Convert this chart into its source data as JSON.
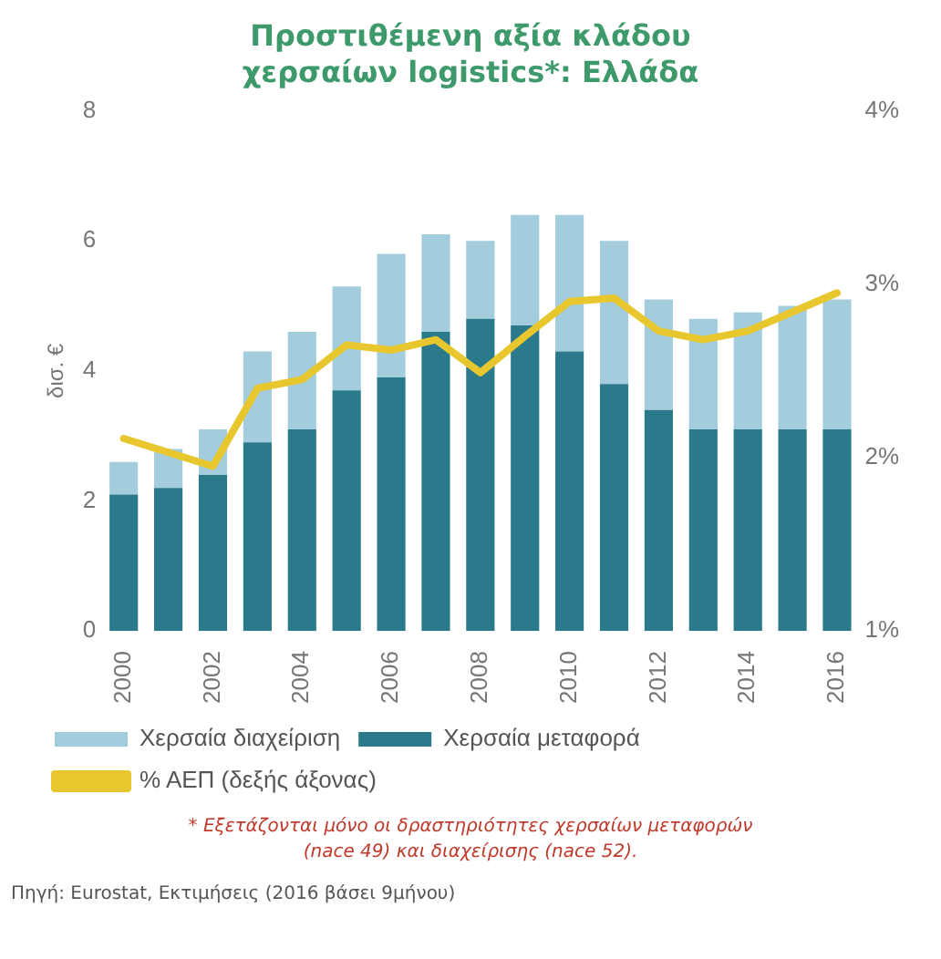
{
  "chart_data": {
    "type": "bar",
    "title": "Προστιθέμενη αξία κλάδου χερσαίων logistics*: Ελλάδα",
    "ylabel": "δισ. €",
    "categories": [
      "2000",
      null,
      "2002",
      null,
      "2004",
      null,
      "2006",
      null,
      "2008",
      null,
      "2010",
      null,
      "2012",
      null,
      "2014",
      null,
      "2016"
    ],
    "stacked": true,
    "series": [
      {
        "name": "Χερσαία μεταφορά",
        "color": "#2b7a8b",
        "values": [
          2.1,
          2.2,
          2.4,
          2.9,
          3.1,
          3.7,
          3.9,
          4.6,
          4.8,
          4.7,
          4.3,
          3.8,
          3.4,
          3.1,
          3.1,
          3.1,
          3.1
        ]
      },
      {
        "name": "Χερσαία διαχείριση",
        "color": "#a3cddc",
        "values": [
          0.5,
          0.6,
          0.7,
          1.4,
          1.5,
          1.6,
          1.9,
          1.5,
          1.2,
          1.7,
          2.1,
          2.2,
          1.7,
          1.7,
          1.8,
          1.9,
          2.0
        ]
      },
      {
        "name": "% ΑΕΠ (δεξής άξονας)",
        "type": "line",
        "axis": "y2",
        "color": "#e8c72e",
        "values": [
          2.11,
          2.03,
          1.95,
          2.4,
          2.45,
          2.65,
          2.62,
          2.68,
          2.49,
          2.7,
          2.9,
          2.92,
          2.73,
          2.68,
          2.73,
          2.84,
          2.95
        ]
      }
    ],
    "ylim": [
      0,
      8
    ],
    "yticks": [
      0,
      2,
      4,
      6,
      8
    ],
    "y2lim": [
      1,
      4
    ],
    "y2ticks": [
      {
        "value": 1,
        "label": "1%"
      },
      {
        "value": 2,
        "label": "2%"
      },
      {
        "value": 3,
        "label": "3%"
      },
      {
        "value": 4,
        "label": "4%"
      }
    ],
    "grid": false,
    "legend": "bottom",
    "marker": "none",
    "annotations": [
      "* Εξετάζονται μόνο οι δραστηριότητες χερσαίων μεταφορών (nace 49) και διαχείρισης (nace 52).",
      "Πηγή: Eurostat, Εκτιμήσεις (2016 βάσει 9μήνου)"
    ]
  }
}
